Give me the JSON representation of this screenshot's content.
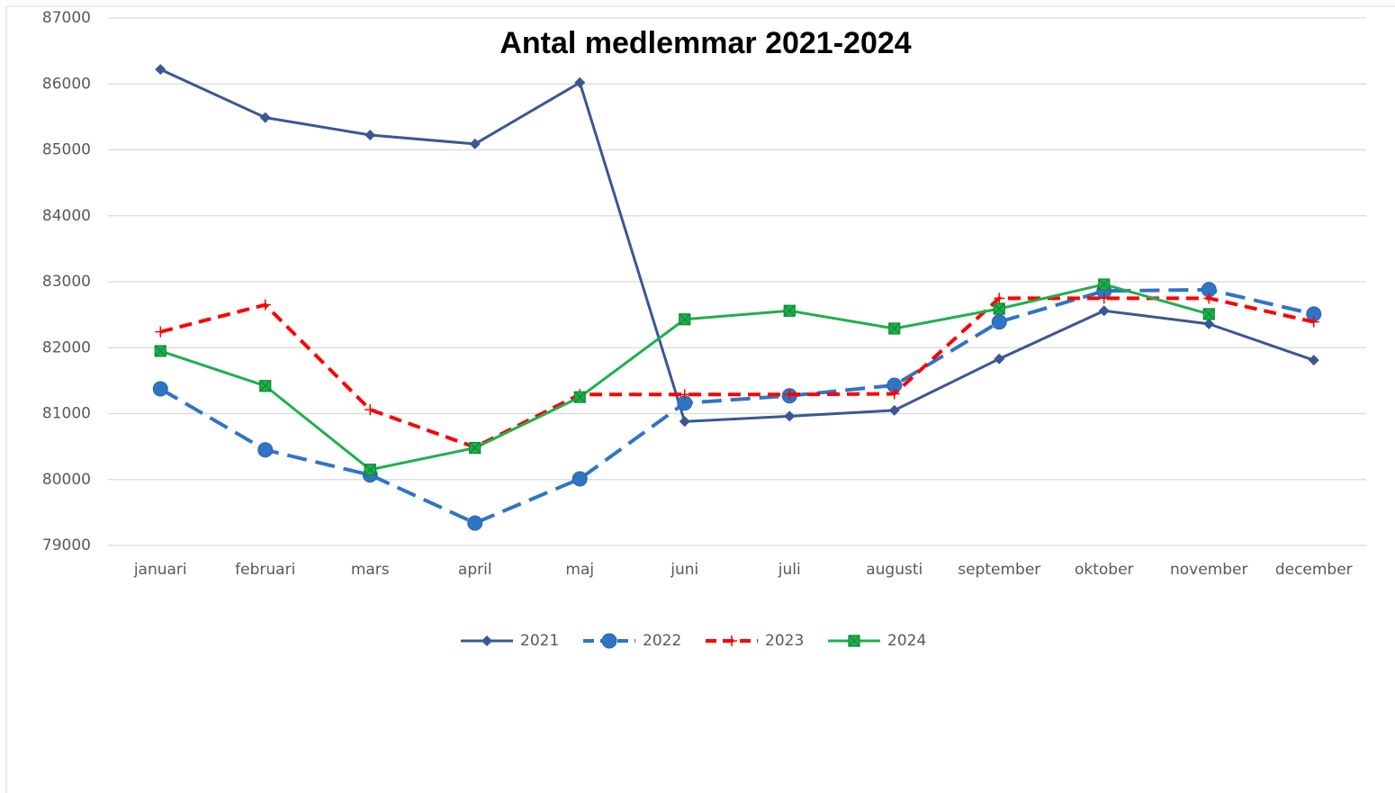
{
  "chart_data": {
    "type": "line",
    "title": "Antal medlemmar 2021-2024",
    "categories": [
      "januari",
      "februari",
      "mars",
      "april",
      "maj",
      "juni",
      "juli",
      "augusti",
      "september",
      "oktober",
      "november",
      "december"
    ],
    "series": [
      {
        "name": "2021",
        "color": "#3a5795",
        "dash": false,
        "marker": "diamond",
        "values": [
          86220,
          85490,
          85225,
          85090,
          86020,
          80880,
          80960,
          81050,
          81830,
          82560,
          82360,
          81810
        ]
      },
      {
        "name": "2022",
        "color": "#2e75c6",
        "dash": true,
        "marker": "circle",
        "values": [
          81375,
          80450,
          80070,
          79340,
          80010,
          81160,
          81270,
          81430,
          82390,
          82860,
          82880,
          82510
        ]
      },
      {
        "name": "2023",
        "color": "#ff0000",
        "dash": true,
        "marker": "plus",
        "values": [
          82240,
          82650,
          81060,
          80490,
          81290,
          81290,
          81290,
          81300,
          82750,
          82750,
          82750,
          82390
        ]
      },
      {
        "name": "2024",
        "color": "#1fb04b",
        "dash": false,
        "marker": "xsquare",
        "values": [
          81950,
          81420,
          80150,
          80480,
          81250,
          82430,
          82560,
          82290,
          82590,
          82960,
          82510,
          null
        ]
      }
    ],
    "ylim": [
      79000,
      87000
    ],
    "yticks": [
      79000,
      80000,
      81000,
      82000,
      83000,
      84000,
      85000,
      86000,
      87000
    ],
    "grid": true,
    "legend": "bottom"
  }
}
